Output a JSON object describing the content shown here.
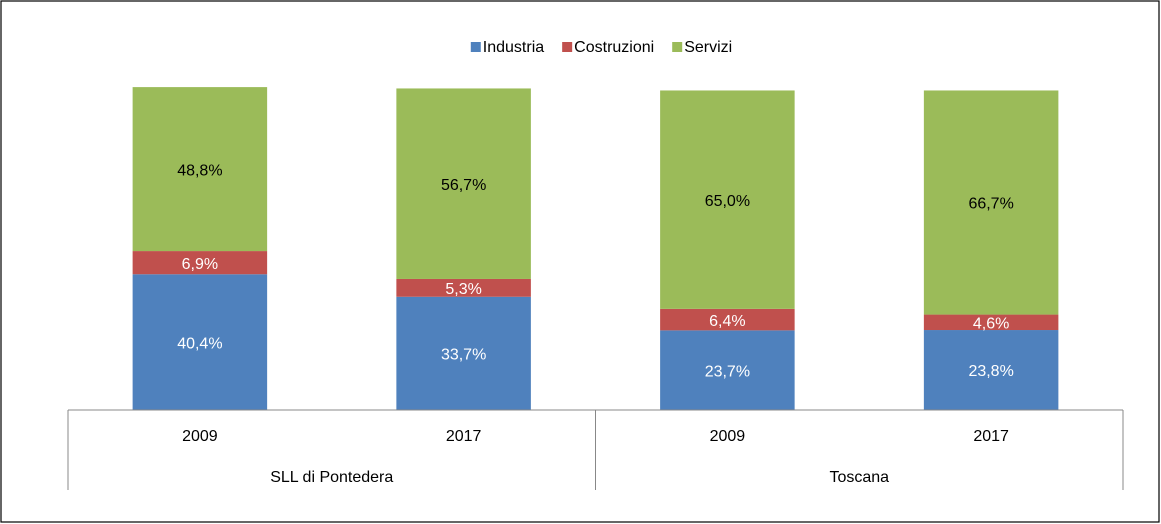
{
  "chart_data": {
    "type": "stacked_bar",
    "category_groups": [
      {
        "label": "SLL di Pontedera",
        "categories": [
          "2009",
          "2017"
        ]
      },
      {
        "label": "Toscana",
        "categories": [
          "2009",
          "2017"
        ]
      }
    ],
    "ylim": [
      0,
      100
    ],
    "series": [
      {
        "name": "Industria",
        "color": "#4f81bd",
        "label_color": "#ffffff",
        "values": [
          40.4,
          33.7,
          23.7,
          23.8
        ],
        "value_labels": [
          "40,4%",
          "33,7%",
          "23,7%",
          "23,8%"
        ]
      },
      {
        "name": "Costruzioni",
        "color": "#c0504d",
        "label_color": "#ffffff",
        "values": [
          6.9,
          5.3,
          6.4,
          4.6
        ],
        "value_labels": [
          "6,9%",
          "5,3%",
          "6,4%",
          "4,6%"
        ]
      },
      {
        "name": "Servizi",
        "color": "#9bbb59",
        "label_color": "#000000",
        "values": [
          48.8,
          56.7,
          65.0,
          66.7
        ],
        "value_labels": [
          "48,8%",
          "56,7%",
          "65,0%",
          "66,7%"
        ]
      }
    ],
    "legend": "top"
  }
}
